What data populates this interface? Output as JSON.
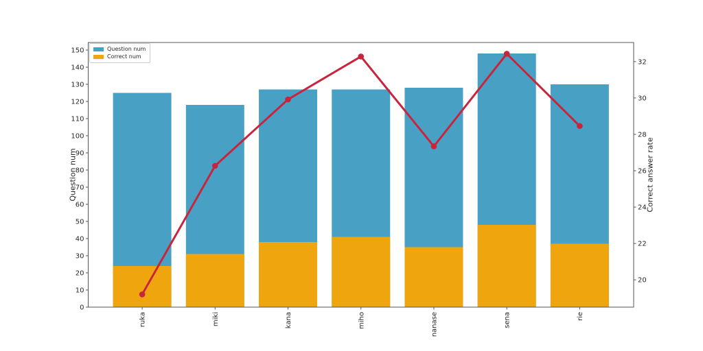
{
  "chart_data": {
    "type": "bar",
    "subtype": "overlay-bars-with-line",
    "bar_mode": "overlay",
    "categories": [
      "ruka",
      "miki",
      "kana",
      "miho",
      "nanase",
      "sena",
      "rie"
    ],
    "series": [
      {
        "name": "Question num",
        "type": "bar",
        "axis": "left",
        "color": "#48a1c5",
        "values": [
          125,
          118,
          127,
          127,
          128,
          148,
          130
        ]
      },
      {
        "name": "Correct num",
        "type": "bar",
        "axis": "left",
        "color": "#efa60e",
        "values": [
          24,
          31,
          38,
          41,
          35,
          48,
          37
        ]
      },
      {
        "name": "Correct answer rate",
        "type": "line",
        "axis": "right",
        "color": "#c8243c",
        "marker": "circle",
        "values": [
          19.2,
          26.27,
          29.92,
          32.28,
          27.34,
          32.43,
          28.46
        ]
      }
    ],
    "left_axis": {
      "label": "Question num",
      "range": [
        0,
        154.4
      ],
      "ticks": [
        0,
        10,
        20,
        30,
        40,
        50,
        60,
        70,
        80,
        90,
        100,
        110,
        120,
        130,
        140,
        150
      ]
    },
    "right_axis": {
      "label": "Correct answer rate",
      "range": [
        18.5,
        33.05
      ],
      "ticks": [
        20,
        22,
        24,
        26,
        28,
        30,
        32
      ]
    },
    "legend": {
      "position": "upper left",
      "entries": [
        "Question num",
        "Correct num"
      ]
    },
    "layout_hints": {
      "grid": false,
      "x_tick_rotation": 90,
      "frame": "full-box"
    },
    "title": ""
  }
}
